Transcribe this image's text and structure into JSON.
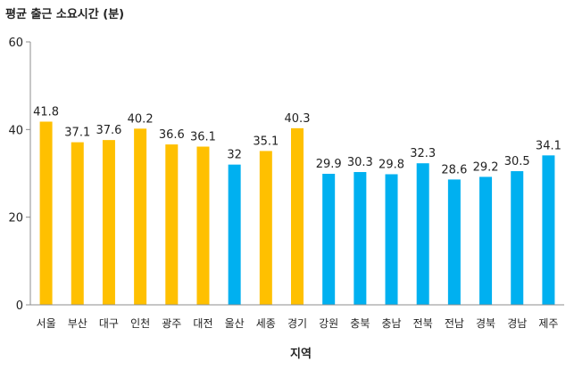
{
  "chart_data": {
    "type": "bar",
    "title": "평균 출근 소요시간 (분)",
    "xlabel": "지역",
    "ylabel": "",
    "ylim": [
      0,
      60
    ],
    "yticks": [
      0,
      20,
      40,
      60
    ],
    "grid": false,
    "categories": [
      "서울",
      "부산",
      "대구",
      "인천",
      "광주",
      "대전",
      "울산",
      "세종",
      "경기",
      "강원",
      "충북",
      "충남",
      "전북",
      "전남",
      "경북",
      "경남",
      "제주"
    ],
    "values": [
      41.8,
      37.1,
      37.6,
      40.2,
      36.6,
      36.1,
      32,
      35.1,
      40.3,
      29.9,
      30.3,
      29.8,
      32.3,
      28.6,
      29.2,
      30.5,
      34.1
    ],
    "value_labels": [
      "41.8",
      "37.1",
      "37.6",
      "40.2",
      "36.6",
      "36.1",
      "32",
      "35.1",
      "40.3",
      "29.9",
      "30.3",
      "29.8",
      "32.3",
      "28.6",
      "29.2",
      "30.5",
      "34.1"
    ],
    "bar_colors": [
      "#FFC000",
      "#FFC000",
      "#FFC000",
      "#FFC000",
      "#FFC000",
      "#FFC000",
      "#00B0F0",
      "#FFC000",
      "#FFC000",
      "#00B0F0",
      "#00B0F0",
      "#00B0F0",
      "#00B0F0",
      "#00B0F0",
      "#00B0F0",
      "#00B0F0",
      "#00B0F0"
    ],
    "axis_color": "#8C8C8C"
  }
}
